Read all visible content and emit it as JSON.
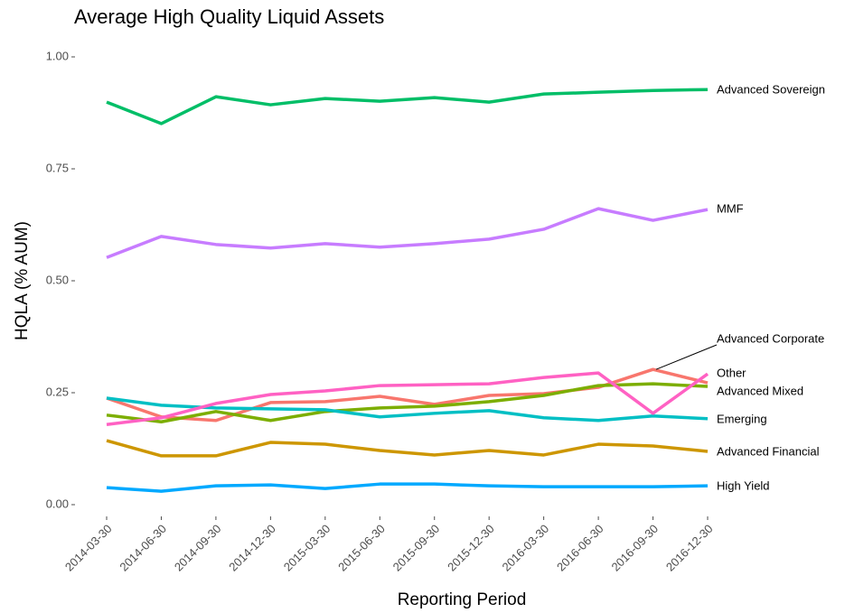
{
  "chart_data": {
    "type": "line",
    "title": "Average High Quality Liquid Assets",
    "x_label": "Reporting Period",
    "y_label": "HQLA (% AUM)",
    "categories": [
      "2014-03-30",
      "2014-06-30",
      "2014-09-30",
      "2014-12-30",
      "2015-03-30",
      "2015-06-30",
      "2015-09-30",
      "2015-12-30",
      "2016-03-30",
      "2016-06-30",
      "2016-09-30",
      "2016-12-30"
    ],
    "ylim": [
      0,
      1
    ],
    "yticks": [
      {
        "value": 0,
        "label": "0.00"
      },
      {
        "value": 0.25,
        "label": "0.25"
      },
      {
        "value": 0.5,
        "label": "0.50"
      },
      {
        "value": 0.75,
        "label": "0.75"
      },
      {
        "value": 1,
        "label": "1.00"
      }
    ],
    "grid": false,
    "series": [
      {
        "name": "Advanced Corporate",
        "color": "#F8766D",
        "values": [
          0.238,
          0.196,
          0.188,
          0.228,
          0.23,
          0.242,
          0.224,
          0.244,
          0.248,
          0.262,
          0.302,
          0.272
        ]
      },
      {
        "name": "Advanced Financial",
        "color": "#CD9600",
        "values": [
          0.143,
          0.109,
          0.109,
          0.139,
          0.135,
          0.121,
          0.111,
          0.121,
          0.111,
          0.135,
          0.131,
          0.119
        ]
      },
      {
        "name": "Advanced Mixed",
        "color": "#7CAE00",
        "values": [
          0.2,
          0.185,
          0.208,
          0.188,
          0.208,
          0.216,
          0.22,
          0.23,
          0.244,
          0.266,
          0.27,
          0.264
        ]
      },
      {
        "name": "Advanced Sovereign",
        "color": "#00BE67",
        "values": [
          0.899,
          0.851,
          0.911,
          0.893,
          0.907,
          0.901,
          0.909,
          0.899,
          0.917,
          0.921,
          0.925,
          0.927
        ]
      },
      {
        "name": "Emerging",
        "color": "#00BFC4",
        "values": [
          0.238,
          0.222,
          0.216,
          0.214,
          0.212,
          0.196,
          0.204,
          0.21,
          0.194,
          0.188,
          0.198,
          0.192
        ]
      },
      {
        "name": "High Yield",
        "color": "#00A9FF",
        "values": [
          0.038,
          0.03,
          0.042,
          0.044,
          0.036,
          0.046,
          0.046,
          0.042,
          0.04,
          0.04,
          0.04,
          0.042
        ]
      },
      {
        "name": "MMF",
        "color": "#C77CFF",
        "values": [
          0.552,
          0.599,
          0.581,
          0.573,
          0.583,
          0.575,
          0.583,
          0.593,
          0.615,
          0.661,
          0.635,
          0.659
        ]
      },
      {
        "name": "Other",
        "color": "#FF61C3",
        "values": [
          0.179,
          0.194,
          0.226,
          0.246,
          0.254,
          0.266,
          0.268,
          0.27,
          0.284,
          0.294,
          0.204,
          0.292
        ]
      }
    ]
  }
}
